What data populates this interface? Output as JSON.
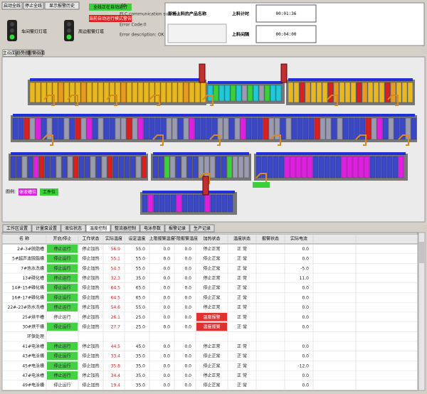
{
  "header": {
    "buttons": [
      "启动全线",
      "停止全线",
      "显示报警历史"
    ],
    "lights": [
      "车间警灯灯塔",
      "周边报警灯塔"
    ],
    "run_status": "全线正在自动运行",
    "mode_warning": "当前自动运行模式警告",
    "plc_code": "05",
    "plc_status": "PLC communication success",
    "error_code": "Error Code:0",
    "error_desc": "Error description: OK",
    "product_label": "即将上料的产品名称",
    "timer_label": "上料计时",
    "timer_value": "00:01:36",
    "interval_label": "上料间隔",
    "interval_value": "00:04:00"
  },
  "tabs": [
    "主画面",
    "趋势图",
    "报警画面"
  ],
  "legend": {
    "title": "图例:",
    "items": [
      {
        "label": "体液槽位",
        "color": "#e020e0"
      },
      {
        "label": "工件位",
        "color": "#3ccf3c"
      }
    ]
  },
  "table_tabs": [
    "工作区设置",
    "计量泵设置",
    "液位状态",
    "温度控制",
    "整流器控制",
    "电泳参数",
    "报警记录",
    "生产记录"
  ],
  "table": {
    "columns": [
      "名 称",
      "开启/停止",
      "工作状态",
      "实际温度",
      "设定温度",
      "上限报警温度",
      "下限报警温度",
      "加热状态",
      "温度状态",
      "报警状态",
      "实际电流"
    ],
    "rows": [
      {
        "name": "2#-3#脱脂槽",
        "switch": "停止运行",
        "switch_color": "#44d044",
        "state": "停止加热",
        "actual": "56.9",
        "set": "55.0",
        "hi": "0.0",
        "lo": "0.0",
        "heat": "停止正常",
        "temp": "正 常",
        "last": "0.0"
      },
      {
        "name": "5#超声波脱脂槽",
        "switch": "停止运行",
        "switch_color": "#44d044",
        "state": "停止加热",
        "actual": "55.1",
        "set": "55.0",
        "hi": "0.0",
        "lo": "0.0",
        "heat": "停止正常",
        "temp": "正 常",
        "last": "0.0"
      },
      {
        "name": "7#热水洗槽",
        "switch": "停止运行",
        "switch_color": "#44d044",
        "state": "停止加热",
        "actual": "54.3",
        "set": "55.0",
        "hi": "0.0",
        "lo": "0.0",
        "heat": "停止正常",
        "temp": "正 常",
        "last": "-5.0"
      },
      {
        "name": "13#磷化槽",
        "switch": "停止运行",
        "switch_color": "#44d044",
        "state": "停止加热",
        "actual": "32.3",
        "set": "35.0",
        "hi": "0.0",
        "lo": "0.0",
        "heat": "停止正常",
        "temp": "正 常",
        "last": "11.0"
      },
      {
        "name": "14#-15#磷化槽",
        "switch": "停止运行",
        "switch_color": "#44d044",
        "state": "停止加热",
        "actual": "64.5",
        "set": "65.0",
        "hi": "0.0",
        "lo": "0.0",
        "heat": "停止正常",
        "temp": "正 常",
        "last": "0.0"
      },
      {
        "name": "16#-17#磷化槽",
        "switch": "停止运行",
        "switch_color": "#44d044",
        "state": "停止加热",
        "actual": "64.5",
        "set": "65.0",
        "hi": "0.0",
        "lo": "0.0",
        "heat": "停止正常",
        "temp": "正 常",
        "last": "0.0"
      },
      {
        "name": "22#-23#热水洗槽",
        "switch": "停止运行",
        "switch_color": "#44d044",
        "state": "停止加热",
        "actual": "54.6",
        "set": "55.0",
        "hi": "0.0",
        "lo": "0.0",
        "heat": "停止正常",
        "temp": "正 常",
        "last": "0.0"
      },
      {
        "name": "25#烘干槽",
        "switch": "停止运行",
        "state": "停止加热",
        "actual": "26.1",
        "set": "25.0",
        "hi": "0.0",
        "lo": "0.0",
        "heat": "温度报警",
        "heat_color": "#e03030",
        "temp": "正 常",
        "last": "0.0"
      },
      {
        "name": "30#烘干槽",
        "switch": "停止运行",
        "switch_color": "#44d044",
        "state": "停止加热",
        "actual": "27.7",
        "set": "25.0",
        "hi": "0.0",
        "lo": "0.0",
        "heat": "温度报警",
        "heat_color": "#e03030",
        "temp": "正 常",
        "last": "0.0"
      },
      {
        "name": "环保处理"
      },
      {
        "name": "41#电泳槽",
        "switch": "停止运行",
        "switch_color": "#44d044",
        "state": "停止加热",
        "actual": "44.5",
        "set": "45.0",
        "hi": "0.0",
        "lo": "0.0",
        "heat": "停止正常",
        "temp": "正 常",
        "last": "0.0"
      },
      {
        "name": "43#电泳槽",
        "switch": "停止运行",
        "switch_color": "#44d044",
        "state": "停止加热",
        "actual": "33.4",
        "set": "35.0",
        "hi": "0.0",
        "lo": "0.0",
        "heat": "停止正常",
        "temp": "正 常",
        "last": "0.0"
      },
      {
        "name": "45#电泳槽",
        "switch": "停止运行",
        "switch_color": "#44d044",
        "state": "停止加热",
        "actual": "35.8",
        "set": "35.0",
        "hi": "0.0",
        "lo": "0.0",
        "heat": "停止正常",
        "temp": "正 常",
        "last": "-12.0"
      },
      {
        "name": "47#电泳槽",
        "switch": "停止运行",
        "switch_color": "#44d044",
        "state": "停止加热",
        "actual": "34.4",
        "set": "35.0",
        "hi": "0.0",
        "lo": "0.0",
        "heat": "停止正常",
        "temp": "正 常",
        "last": "0.0"
      },
      {
        "name": "49#电泳槽",
        "switch": "停止运行",
        "state": "停止加热",
        "actual": "19.4",
        "set": "35.0",
        "hi": "0.0",
        "lo": "0.0",
        "heat": "停止正常",
        "temp": "正 常",
        "last": "0.0"
      }
    ]
  }
}
